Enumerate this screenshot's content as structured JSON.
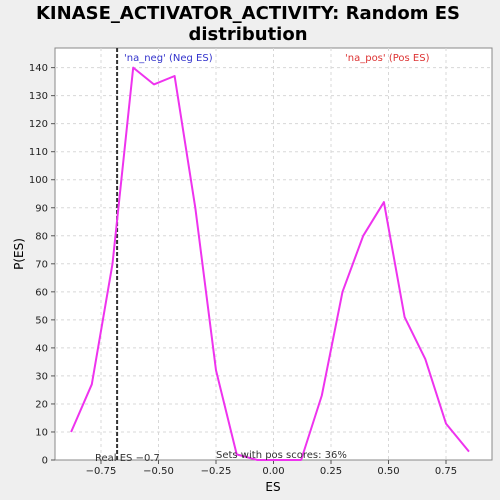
{
  "chart_data": {
    "type": "line",
    "title_line1": "KINASE_ACTIVATOR_ACTIVITY: Random ES",
    "title_line2": "distribution",
    "xlabel": "ES",
    "ylabel": "P(ES)",
    "xlim": [
      -0.95,
      0.95
    ],
    "ylim": [
      0,
      147
    ],
    "x_ticks": [
      -0.75,
      -0.5,
      -0.25,
      0.0,
      0.25,
      0.5,
      0.75
    ],
    "x_tick_labels": [
      "−0.75",
      "−0.50",
      "−0.25",
      "0.00",
      "0.25",
      "0.50",
      "0.75"
    ],
    "y_ticks": [
      0,
      10,
      20,
      30,
      40,
      50,
      60,
      70,
      80,
      90,
      100,
      110,
      120,
      130,
      140
    ],
    "y_tick_labels": [
      "0",
      "10",
      "20",
      "30",
      "40",
      "50",
      "60",
      "70",
      "80",
      "90",
      "100",
      "110",
      "120",
      "130",
      "140"
    ],
    "grid": true,
    "series": [
      {
        "color": "#ee33ee",
        "x": [
          -0.88,
          -0.79,
          -0.7,
          -0.61,
          -0.52,
          -0.43,
          -0.34,
          -0.25,
          -0.16,
          -0.07,
          0.03,
          0.12,
          0.21,
          0.3,
          0.39,
          0.48,
          0.57,
          0.66,
          0.75,
          0.85
        ],
        "y": [
          10,
          27,
          70,
          140,
          134,
          137,
          90,
          32,
          2,
          0,
          0,
          0,
          23,
          60,
          80,
          92,
          51,
          36,
          13,
          3
        ]
      }
    ],
    "real_es": {
      "x": -0.68,
      "label": "Real ES −0.7",
      "color": "#333333"
    },
    "annotations": [
      {
        "text": "'na_neg' (Neg ES)",
        "color": "#3333cc"
      },
      {
        "text": "'na_pos' (Pos ES)",
        "color": "#dd3333"
      },
      {
        "text": "Sets with pos scores: 36%",
        "color": "#333333"
      }
    ]
  }
}
